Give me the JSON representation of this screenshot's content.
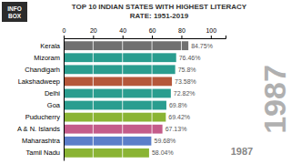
{
  "chart_data": {
    "type": "bar",
    "orientation": "horizontal",
    "title": "TOP 10 INDIAN STATES WITH HIGHEST LITERACY",
    "subtitle": "RATE: 1951-2019",
    "annotations": [
      "1987",
      "1987",
      "INFO",
      "BOX"
    ],
    "categories": [
      "Tamil Nadu",
      "Maharashtra",
      "A & N. Islands",
      "Puducherry",
      "Goa",
      "Delhi",
      "Lakshadweep",
      "Chandigarh",
      "Mizoram",
      "Kerala"
    ],
    "values": [
      58.04,
      59.68,
      67.13,
      69.42,
      69.8,
      72.82,
      73.58,
      75.8,
      76.46,
      84.75
    ],
    "value_labels": [
      "58.04%",
      "59.68%",
      "67.13%",
      "69.42%",
      "69.8%",
      "72.82%",
      "73.58%",
      "75.8%",
      "76.46%",
      "84.75%"
    ],
    "colors": [
      "#8ab434",
      "#5b7ec9",
      "#c45c8a",
      "#8ab434",
      "#2a9d8f",
      "#2a9d8f",
      "#b5573a",
      "#2a9d8f",
      "#2a9d8f",
      "#707070"
    ],
    "xlim": [
      0,
      110
    ],
    "xticks": [
      0,
      20,
      40,
      60,
      80,
      100
    ],
    "grid": true,
    "data_labels": true
  }
}
